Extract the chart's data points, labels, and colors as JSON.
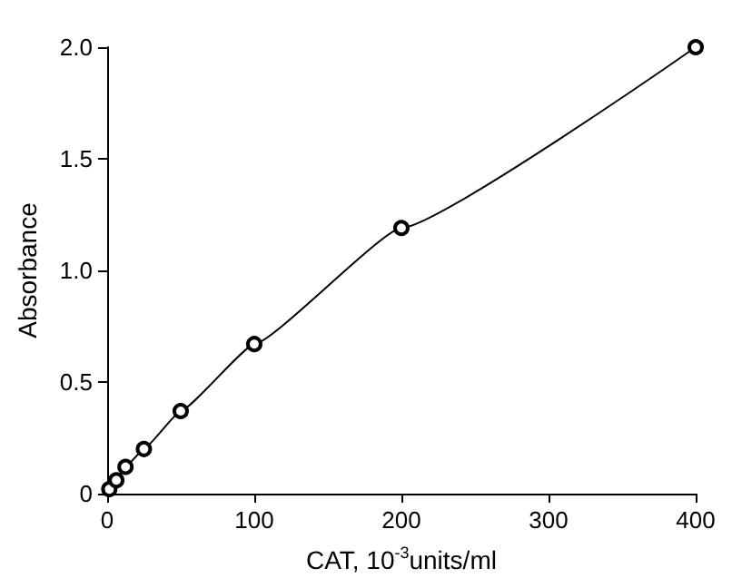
{
  "chart_data": {
    "type": "line",
    "xlabel": "CAT, 10$^{-3}$units/ml",
    "ylabel": "Absorbance",
    "x": [
      1.5,
      6.25,
      12.5,
      25,
      50,
      100,
      200,
      400
    ],
    "series": [
      {
        "color": "#000000",
        "values": [
          0.02,
          0.06,
          0.12,
          0.2,
          0.37,
          0.67,
          1.19,
          2.0
        ]
      }
    ],
    "xlim": [
      0,
      400
    ],
    "xticks": [
      0,
      100,
      200,
      300,
      400
    ],
    "ylim": [
      0,
      2
    ],
    "yticks": [
      0,
      {
        "value": 0.5,
        "label": "0.5"
      },
      {
        "value": 1,
        "label": "1.0"
      },
      {
        "value": 1.5,
        "label": "1.5"
      },
      {
        "value": 2,
        "label": "2.0"
      }
    ],
    "grid": false,
    "marker": "circle",
    "line_style": "solid"
  }
}
